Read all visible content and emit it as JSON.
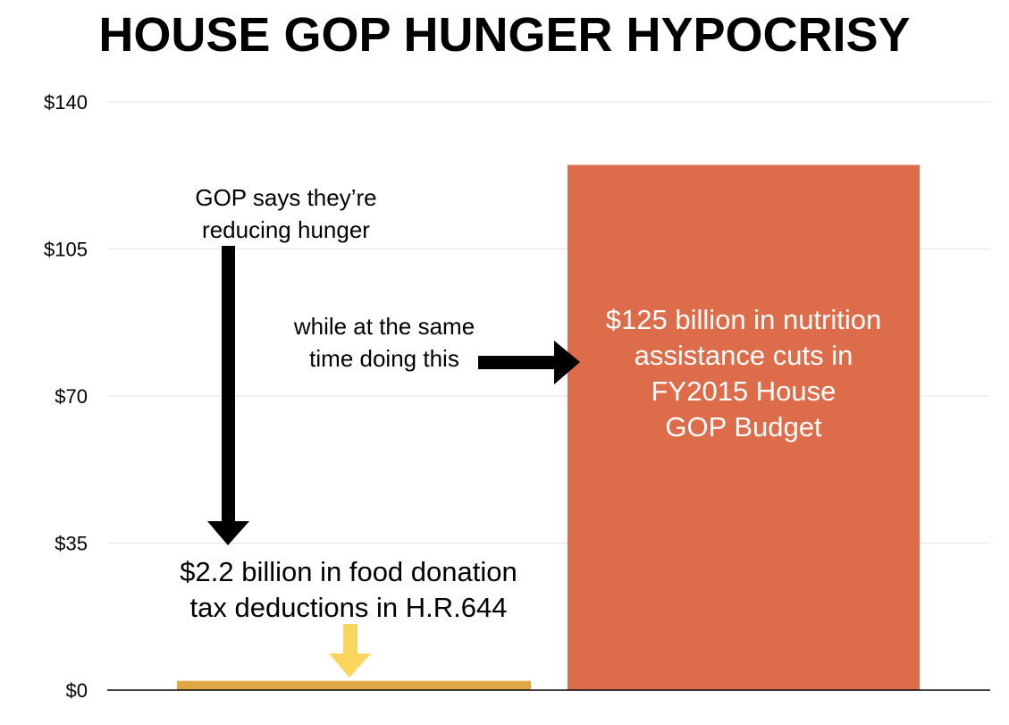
{
  "title": "HOUSE GOP HUNGER HYPOCRISY",
  "chart_data": {
    "type": "bar",
    "categories": [
      "",
      ""
    ],
    "values": [
      2.2,
      125
    ],
    "ylim": [
      0,
      140
    ],
    "yticks": [
      0,
      35,
      70,
      105,
      140
    ],
    "ytick_labels": [
      "$0",
      "$35",
      "$70",
      "$105",
      "$140"
    ],
    "grid": true,
    "colors": [
      "#e0a644",
      "#dd6c4a"
    ],
    "xlabel": "",
    "ylabel": ""
  },
  "annotations": {
    "gop_says": [
      "GOP says they’re",
      "reducing hunger"
    ],
    "while_same_time": [
      "while at the same",
      "time doing this"
    ],
    "left_bar_label": [
      "$2.2 billion in food donation",
      "tax deductions in H.R.644"
    ],
    "right_bar_label": [
      "$125 billion in nutrition",
      "assistance cuts in",
      "FY2015 House",
      "GOP Budget"
    ]
  },
  "colors": {
    "arrow_black": "#000000",
    "arrow_yellow": "#fad55c",
    "grid": "#e6e6e6"
  }
}
